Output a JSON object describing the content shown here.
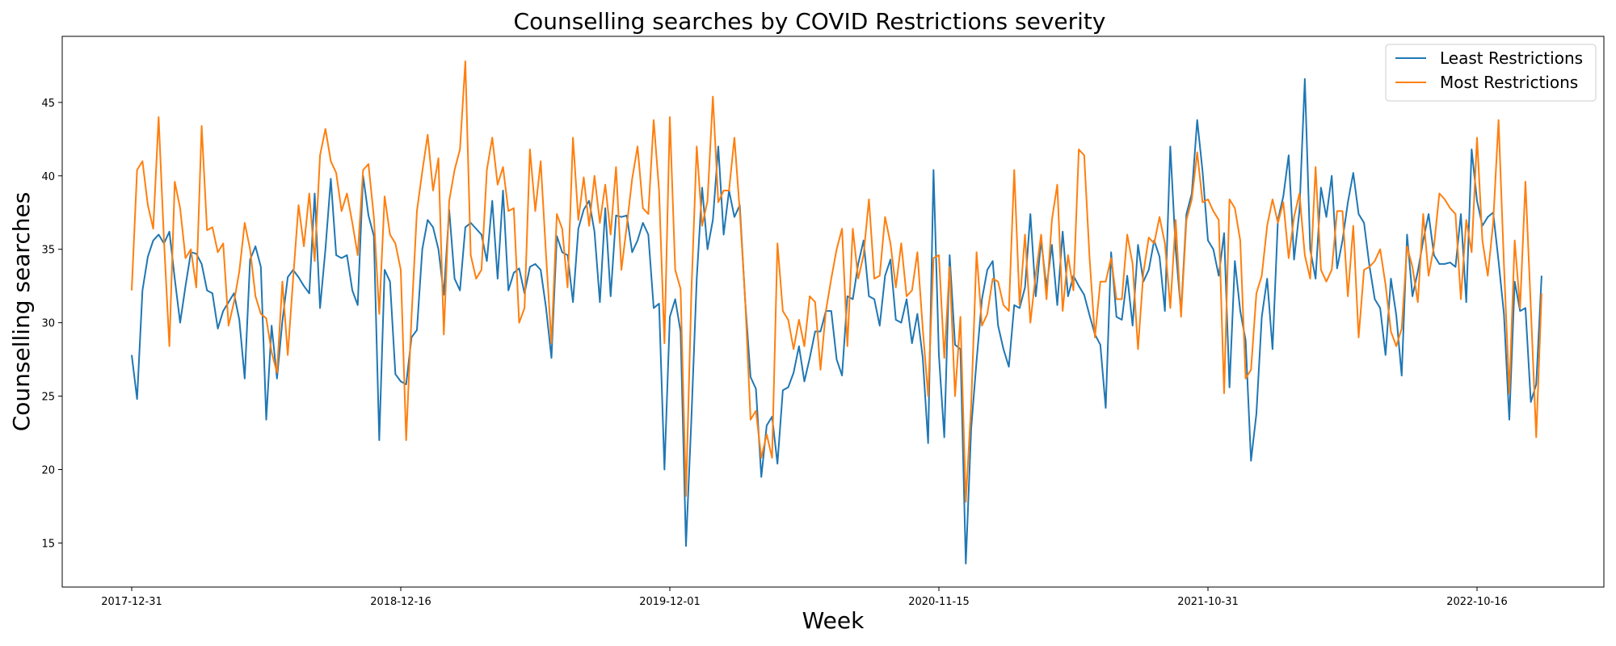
{
  "chart_data": {
    "type": "line",
    "title": "Counselling searches by COVID Restrictions severity",
    "xlabel": "Week",
    "ylabel": "Counselling searches",
    "x_start": "2017-12-31",
    "x_end": "2023-02-26",
    "x_interval_days": 7,
    "x_ticks": [
      "2017-12-31",
      "2018-12-16",
      "2019-12-01",
      "2020-11-15",
      "2021-10-31",
      "2022-10-16"
    ],
    "ylim": [
      12,
      49.5
    ],
    "y_ticks": [
      15,
      20,
      25,
      30,
      35,
      40,
      45
    ],
    "grid": false,
    "legend_position": "top-right",
    "colors": {
      "least": "#1f77b4",
      "most": "#ff7f0e"
    },
    "series": [
      {
        "name": "Least Restrictions",
        "color": "#1f77b4",
        "values": [
          27.8,
          24.8,
          32.2,
          34.5,
          35.6,
          36.0,
          35.4,
          36.2,
          33.0,
          30.0,
          32.5,
          34.8,
          34.7,
          34.0,
          32.2,
          32.0,
          29.6,
          30.8,
          31.4,
          32.0,
          30.2,
          26.2,
          34.3,
          35.2,
          33.8,
          23.4,
          29.8,
          26.2,
          30.1,
          33.1,
          33.6,
          33.1,
          32.5,
          32.0,
          38.8,
          31.0,
          35.0,
          39.8,
          34.6,
          34.4,
          34.6,
          32.2,
          31.2,
          40.0,
          37.3,
          35.9,
          22.0,
          33.6,
          32.8,
          26.5,
          26.0,
          25.8,
          29.0,
          29.5,
          35.0,
          37.0,
          36.5,
          35.0,
          31.9,
          37.7,
          33.0,
          32.2,
          36.5,
          36.8,
          36.4,
          36.0,
          34.2,
          38.3,
          33.0,
          39.0,
          32.2,
          33.4,
          33.7,
          32.0,
          33.8,
          34.0,
          33.6,
          31.0,
          27.6,
          35.9,
          34.8,
          34.6,
          31.4,
          36.4,
          37.7,
          38.3,
          36.2,
          31.4,
          37.8,
          31.8,
          37.3,
          37.2,
          37.3,
          34.8,
          35.6,
          36.8,
          36.0,
          31.0,
          31.3,
          20.0,
          30.4,
          31.6,
          29.4,
          14.8,
          23.4,
          33.0,
          39.2,
          35.0,
          37.0,
          42.0,
          36.0,
          39.0,
          37.2,
          38.0,
          31.5,
          26.3,
          25.5,
          19.5,
          23.0,
          23.6,
          20.4,
          25.4,
          25.6,
          26.6,
          28.4,
          26.0,
          27.6,
          29.4,
          29.4,
          30.8,
          30.8,
          27.5,
          26.4,
          31.8,
          31.6,
          34.0,
          35.6,
          31.8,
          31.6,
          29.8,
          33.2,
          34.3,
          30.2,
          30.0,
          31.6,
          28.6,
          30.6,
          27.6,
          21.8,
          40.4,
          27.8,
          22.2,
          34.6,
          28.5,
          28.2,
          13.6,
          22.8,
          27.4,
          31.6,
          33.6,
          34.2,
          29.8,
          28.2,
          27.0,
          31.2,
          31.0,
          32.4,
          37.4,
          31.8,
          35.6,
          32.4,
          35.3,
          31.2,
          36.2,
          31.8,
          33.2,
          32.5,
          31.9,
          30.5,
          29.2,
          28.5,
          24.2,
          34.8,
          30.4,
          30.2,
          33.2,
          29.8,
          35.3,
          32.8,
          33.6,
          35.6,
          34.5,
          30.8,
          42.0,
          35.0,
          30.7,
          37.4,
          38.8,
          43.8,
          40.3,
          35.6,
          35.0,
          33.2,
          36.1,
          25.6,
          34.2,
          30.8,
          28.8,
          20.6,
          23.8,
          30.4,
          33.0,
          28.2,
          37.0,
          38.6,
          41.4,
          34.3,
          37.6,
          46.6,
          35.0,
          33.0,
          39.2,
          37.2,
          40.0,
          33.7,
          35.6,
          38.2,
          40.2,
          37.4,
          36.8,
          33.9,
          31.6,
          31.0,
          27.8,
          33.0,
          30.5,
          26.4,
          36.0,
          31.8,
          33.5,
          35.6,
          37.4,
          34.6,
          34.0,
          34.0,
          34.1,
          33.8,
          37.4,
          31.4,
          41.8,
          38.3,
          36.6,
          37.2,
          37.5,
          34.2,
          30.6,
          23.4,
          32.8,
          30.8,
          31.0,
          24.6,
          25.8,
          33.2
        ]
      },
      {
        "name": "Most Restrictions",
        "color": "#ff7f0e",
        "values": [
          32.2,
          40.4,
          41.0,
          38.0,
          36.4,
          44.0,
          35.6,
          28.4,
          39.6,
          37.8,
          34.4,
          35.0,
          32.4,
          43.4,
          36.3,
          36.5,
          34.8,
          35.4,
          29.8,
          31.4,
          33.5,
          36.8,
          35.0,
          31.8,
          30.6,
          30.3,
          28.0,
          26.6,
          32.8,
          27.8,
          33.0,
          38.0,
          35.2,
          38.8,
          34.2,
          41.4,
          43.2,
          41.0,
          40.2,
          37.6,
          38.8,
          36.8,
          34.6,
          40.4,
          40.8,
          37.2,
          30.6,
          38.6,
          36.0,
          35.4,
          33.6,
          22.0,
          30.4,
          37.6,
          40.3,
          42.8,
          39.0,
          41.2,
          29.2,
          38.3,
          40.4,
          41.8,
          47.8,
          34.6,
          33.0,
          33.6,
          40.4,
          42.6,
          39.4,
          40.6,
          37.6,
          37.8,
          30.0,
          31.0,
          41.8,
          37.6,
          41.0,
          34.6,
          28.6,
          37.4,
          36.4,
          32.4,
          42.6,
          37.0,
          39.9,
          36.6,
          40.0,
          36.8,
          39.4,
          36.0,
          40.6,
          33.6,
          36.6,
          39.8,
          42.0,
          37.8,
          37.4,
          43.8,
          39.0,
          28.6,
          44.0,
          33.6,
          32.3,
          18.2,
          32.0,
          42.0,
          36.6,
          38.3,
          45.4,
          38.2,
          39.0,
          39.0,
          42.6,
          37.6,
          31.6,
          23.4,
          24.0,
          20.8,
          22.4,
          20.8,
          35.4,
          30.8,
          30.2,
          28.2,
          30.2,
          28.4,
          31.8,
          31.4,
          26.8,
          30.8,
          33.0,
          35.0,
          36.4,
          28.4,
          36.4,
          33.0,
          34.6,
          38.4,
          33.0,
          33.2,
          37.2,
          35.4,
          32.4,
          35.4,
          31.8,
          32.2,
          34.8,
          29.6,
          25.0,
          34.4,
          34.6,
          27.6,
          33.8,
          25.0,
          30.4,
          17.8,
          24.4,
          34.8,
          29.8,
          30.6,
          33.0,
          32.8,
          31.2,
          30.8,
          40.4,
          31.2,
          36.0,
          30.0,
          33.3,
          36.0,
          31.6,
          37.0,
          39.4,
          30.8,
          34.6,
          32.2,
          41.8,
          41.4,
          34.4,
          29.0,
          32.8,
          32.8,
          34.4,
          31.6,
          31.6,
          36.0,
          34.0,
          28.2,
          33.4,
          35.8,
          35.4,
          37.2,
          35.4,
          31.0,
          37.0,
          30.4,
          37.0,
          38.4,
          41.6,
          38.2,
          38.4,
          37.6,
          37.0,
          25.2,
          38.4,
          37.8,
          35.6,
          26.2,
          26.8,
          32.0,
          33.2,
          36.6,
          38.4,
          36.8,
          38.2,
          34.4,
          37.2,
          38.8,
          34.6,
          33.0,
          40.6,
          33.6,
          32.8,
          33.6,
          37.6,
          37.6,
          31.8,
          36.6,
          29.0,
          33.6,
          33.8,
          34.2,
          35.0,
          32.6,
          29.4,
          28.4,
          29.6,
          35.2,
          33.8,
          31.4,
          37.4,
          33.2,
          35.2,
          38.8,
          38.4,
          37.8,
          37.4,
          31.6,
          37.0,
          34.8,
          42.6,
          35.6,
          33.2,
          36.8,
          43.8,
          34.0,
          25.2,
          35.6,
          31.0,
          39.6,
          31.0,
          22.2,
          32.0
        ]
      }
    ]
  }
}
